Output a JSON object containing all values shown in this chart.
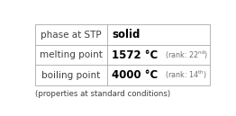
{
  "rows": [
    {
      "label": "phase at STP",
      "value": "solid",
      "rank_num": "",
      "rank_suffix": ""
    },
    {
      "label": "melting point",
      "value": "1572 °C",
      "rank_num": "22",
      "rank_suffix": "nd"
    },
    {
      "label": "boiling point",
      "value": "4000 °C",
      "rank_num": "14",
      "rank_suffix": "th"
    }
  ],
  "footnote": "(properties at standard conditions)",
  "bg_color": "#ffffff",
  "border_color": "#aaaaaa",
  "label_color": "#404040",
  "value_color": "#000000",
  "rank_color": "#707070",
  "footnote_color": "#404040",
  "label_fontsize": 7.5,
  "value_fontsize": 8.5,
  "rank_fontsize": 5.8,
  "rank_super_fontsize": 4.5,
  "footnote_fontsize": 6.2,
  "col_split": 0.415
}
